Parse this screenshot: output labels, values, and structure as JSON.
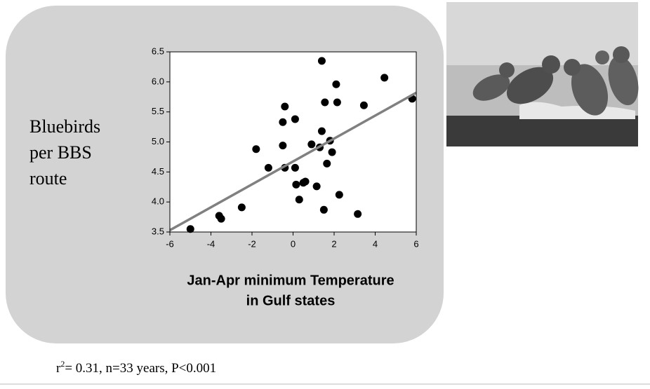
{
  "chart_data": {
    "type": "scatter",
    "y_label_lines": [
      "Bluebirds",
      "per BBS",
      "route"
    ],
    "x_label_lines": [
      "Jan-Apr minimum Temperature",
      "in Gulf states"
    ],
    "x": [
      -5.0,
      -3.6,
      -3.5,
      -2.5,
      -1.8,
      -1.2,
      -0.5,
      -0.5,
      -0.4,
      -0.4,
      0.1,
      0.1,
      0.15,
      0.3,
      0.5,
      0.6,
      0.9,
      1.15,
      1.3,
      1.4,
      1.4,
      1.5,
      1.55,
      1.65,
      1.8,
      1.9,
      2.1,
      2.15,
      2.25,
      3.15,
      3.45,
      4.45,
      5.8
    ],
    "series": [
      {
        "color": "#000000",
        "values": [
          3.55,
          3.77,
          3.72,
          3.91,
          4.88,
          4.57,
          4.94,
          5.33,
          5.59,
          4.57,
          5.38,
          4.57,
          4.29,
          4.04,
          4.32,
          4.34,
          4.96,
          4.26,
          4.91,
          6.35,
          5.18,
          3.87,
          5.66,
          4.64,
          5.02,
          4.83,
          5.96,
          5.66,
          4.12,
          3.8,
          5.61,
          6.07,
          5.72
        ]
      }
    ],
    "trendline": {
      "color": "#808080",
      "x": [
        -6,
        6
      ],
      "y": [
        3.53,
        5.82
      ]
    },
    "xlim": [
      -6,
      6
    ],
    "xticks": [
      -6,
      -4,
      -2,
      0,
      2,
      4,
      6
    ],
    "ylim": [
      3.5,
      6.5
    ],
    "yticks": [
      3.5,
      {
        "value": 4,
        "label": "4.0"
      },
      4.5,
      {
        "value": 5,
        "label": "5.0"
      },
      5.5,
      {
        "value": 6,
        "label": "6.0"
      },
      6.5
    ],
    "note": {
      "base": "r",
      "superscript": "2",
      "rest": "= 0.31, n=33 years, P<0.001"
    }
  }
}
